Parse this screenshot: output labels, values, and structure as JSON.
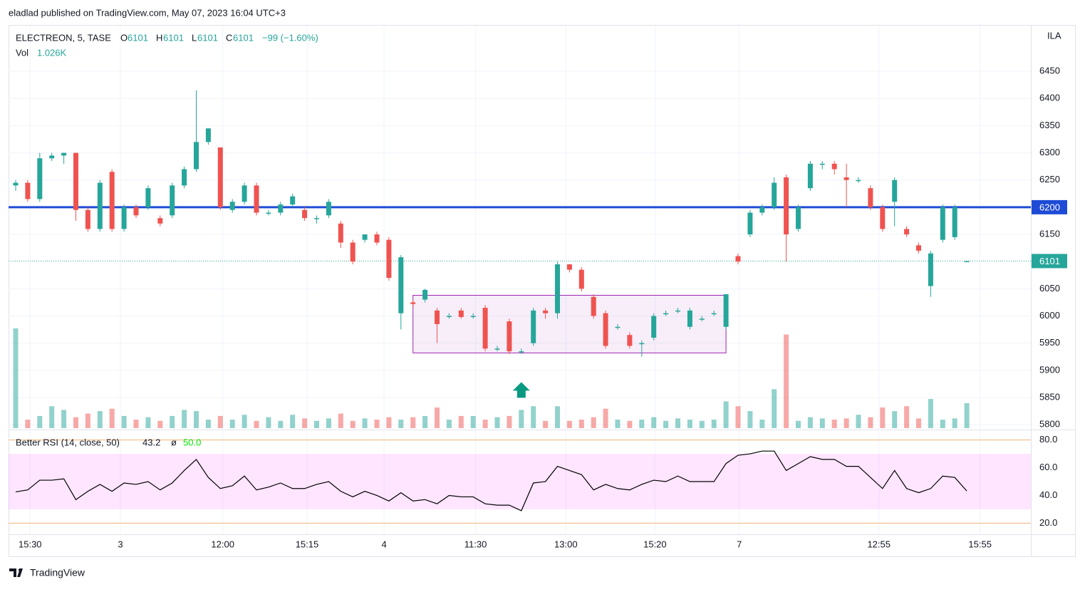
{
  "header": {
    "published": "eladlad published on TradingView.com, May 07, 2023 16:04 UTC+3"
  },
  "footer": {
    "brand": "TradingView"
  },
  "chart_data": {
    "type": "candlestick",
    "symbol": "ELECTREON, 5, TASE",
    "legend": {
      "O": "O",
      "H": "H",
      "L": "L",
      "C": "C",
      "open": 6101,
      "high": 6101,
      "low": 6101,
      "close": 6101,
      "change": "−99 (−1.60%)",
      "vol_label": "Vol",
      "vol_value": "1.026K"
    },
    "currency": "ILA",
    "up_color": "#26a69a",
    "down_color": "#ef5350",
    "ylim": [
      5791,
      6534
    ],
    "yticks": [
      5800,
      5850,
      5900,
      5950,
      6000,
      6050,
      6150,
      6250,
      6300,
      6350,
      6400,
      6450
    ],
    "grid": true,
    "xticks": [
      {
        "value": 1.2,
        "label": "15:30"
      },
      {
        "value": 8.7,
        "label": "3"
      },
      {
        "value": 17.2,
        "label": "12:00"
      },
      {
        "value": 24.2,
        "label": "15:15"
      },
      {
        "value": 30.6,
        "label": "4"
      },
      {
        "value": 38.2,
        "label": "11:30"
      },
      {
        "value": 45.7,
        "label": "13:00"
      },
      {
        "value": 53.1,
        "label": "15:20"
      },
      {
        "value": 60.1,
        "label": "7"
      },
      {
        "value": 71.7,
        "label": "12:55"
      },
      {
        "value": 80.1,
        "label": "15:55"
      }
    ],
    "open": [
      6240,
      6245,
      6215,
      6290,
      6295,
      6300,
      6195,
      6160,
      6265,
      6160,
      6200,
      6200,
      6180,
      6185,
      6240,
      6270,
      6320,
      6310,
      6195,
      6210,
      6240,
      6190,
      6190,
      6205,
      6195,
      6180,
      6185,
      6170,
      6135,
      6140,
      6150,
      6140,
      6005,
      6025,
      6030,
      6010,
      6000,
      6010,
      6000,
      6015,
      5940,
      5990,
      5935,
      5950,
      6010,
      6005,
      6095,
      6085,
      6035,
      6005,
      5980,
      5965,
      5950,
      5960,
      6005,
      6010,
      5980,
      5995,
      6005,
      5980,
      6110,
      6150,
      6190,
      6200,
      6255,
      6160,
      6235,
      6280,
      6280,
      6255,
      6250,
      6235,
      6200,
      6210,
      6160,
      6130,
      6055,
      6140,
      6145,
      6101
    ],
    "high": [
      6250,
      6250,
      6300,
      6300,
      6300,
      6300,
      6200,
      6250,
      6270,
      6205,
      6205,
      6240,
      6185,
      6245,
      6275,
      6415,
      6345,
      6310,
      6215,
      6245,
      6245,
      6195,
      6210,
      6225,
      6200,
      6185,
      6215,
      6175,
      6140,
      6150,
      6155,
      6145,
      6112,
      6030,
      6050,
      6015,
      6005,
      6015,
      6005,
      6020,
      5945,
      5995,
      5940,
      6015,
      6015,
      6100,
      6095,
      6090,
      6040,
      6010,
      5985,
      5970,
      5955,
      6005,
      6010,
      6015,
      6015,
      6000,
      6010,
      6040,
      6115,
      6195,
      6205,
      6255,
      6260,
      6205,
      6285,
      6285,
      6285,
      6280,
      6255,
      6240,
      6205,
      6255,
      6165,
      6135,
      6120,
      6205,
      6205,
      6101
    ],
    "low": [
      6230,
      6210,
      6210,
      6285,
      6280,
      6175,
      6155,
      6155,
      6155,
      6155,
      6180,
      6195,
      6165,
      6180,
      6235,
      6265,
      6315,
      6195,
      6190,
      6205,
      6185,
      6185,
      6185,
      6200,
      6175,
      6170,
      6180,
      6125,
      6095,
      6135,
      6130,
      6065,
      5975,
      6015,
      6025,
      5950,
      5995,
      5995,
      5995,
      5935,
      5935,
      5930,
      5930,
      5945,
      5995,
      5995,
      6080,
      6045,
      5995,
      5940,
      5975,
      5940,
      5925,
      5955,
      6000,
      6005,
      5975,
      5990,
      6000,
      5975,
      6095,
      6145,
      6185,
      6195,
      6100,
      6155,
      6230,
      6270,
      6260,
      6200,
      6245,
      6195,
      6155,
      6165,
      6145,
      6115,
      6035,
      6135,
      6140,
      6101
    ],
    "close": [
      6245,
      6215,
      6290,
      6295,
      6300,
      6195,
      6160,
      6245,
      6160,
      6200,
      6185,
      6235,
      6170,
      6240,
      6270,
      6320,
      6345,
      6200,
      6210,
      6240,
      6190,
      6190,
      6205,
      6220,
      6180,
      6180,
      6210,
      6135,
      6100,
      6150,
      6135,
      6070,
      6108,
      6022,
      6048,
      5985,
      6000,
      5998,
      6000,
      5940,
      5940,
      5935,
      5935,
      6010,
      6005,
      6095,
      6085,
      6050,
      6000,
      5945,
      5980,
      5945,
      5950,
      6000,
      6005,
      6010,
      6010,
      5995,
      6005,
      6040,
      6100,
      6190,
      6200,
      6245,
      6150,
      6200,
      6280,
      6280,
      6270,
      6250,
      6250,
      6200,
      6160,
      6250,
      6150,
      6120,
      6115,
      6200,
      6200,
      6101
    ],
    "volume": [
      4100,
      350,
      500,
      900,
      750,
      450,
      600,
      700,
      800,
      500,
      350,
      450,
      300,
      500,
      750,
      700,
      350,
      500,
      350,
      550,
      300,
      450,
      300,
      550,
      400,
      300,
      400,
      600,
      300,
      400,
      350,
      450,
      350,
      450,
      500,
      850,
      350,
      500,
      500,
      350,
      450,
      500,
      750,
      900,
      300,
      900,
      300,
      350,
      450,
      800,
      350,
      300,
      350,
      450,
      300,
      400,
      350,
      300,
      350,
      1100,
      900,
      700,
      350,
      1600,
      3850,
      300,
      450,
      400,
      350,
      400,
      550,
      450,
      850,
      700,
      900,
      400,
      1200,
      350,
      400,
      1026
    ],
    "hline": {
      "value": 6200,
      "color": "#1e4bd6"
    },
    "rectangle": {
      "from": 33,
      "to": 59,
      "low": 5932,
      "high": 6038
    },
    "arrow": {
      "index": 42,
      "price": 5860
    },
    "rsi": {
      "title": "Better RSI (14, close, 50)",
      "value": 43.2,
      "symbol": "ø",
      "mid_value": "50.0",
      "ylim": [
        12,
        87
      ],
      "yticks": [
        {
          "value": 20,
          "label": "20.0"
        },
        {
          "value": 40,
          "label": "40.0"
        },
        {
          "value": 60,
          "label": "60.0"
        },
        {
          "value": 80,
          "label": "80.0"
        }
      ],
      "band": [
        30,
        70
      ],
      "values": [
        42.6,
        44,
        51,
        51,
        52,
        37,
        43,
        48,
        43,
        49,
        48,
        50,
        44,
        49,
        58,
        66,
        53,
        45,
        47,
        54,
        44,
        46,
        49,
        45,
        45,
        48,
        50,
        43,
        39,
        43,
        40,
        36,
        42,
        36,
        37,
        34,
        40,
        39,
        39,
        34,
        33,
        33,
        29,
        49,
        50,
        61,
        58,
        55,
        44,
        48,
        45,
        44,
        48,
        51,
        50,
        54,
        50,
        50,
        50,
        63,
        69,
        70,
        72,
        72,
        58,
        63,
        68,
        66,
        66,
        61,
        61,
        53,
        45,
        58,
        45,
        42,
        45,
        54,
        53,
        43.2
      ]
    }
  }
}
